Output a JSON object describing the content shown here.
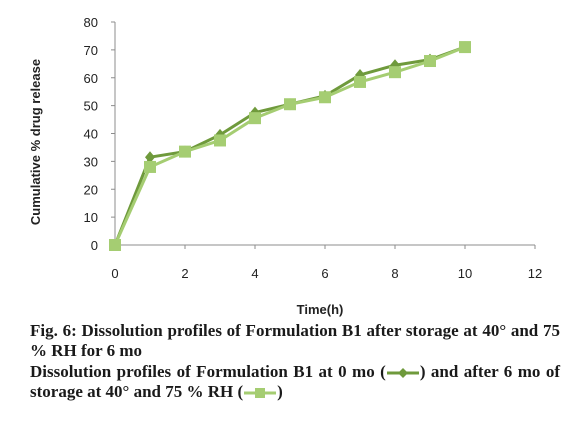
{
  "chart_data": {
    "type": "line",
    "xlabel": "Time(h)",
    "ylabel": "Cumulative % drug release",
    "xlim": [
      0,
      12
    ],
    "ylim": [
      0,
      80
    ],
    "xticks": [
      0,
      2,
      4,
      6,
      8,
      10,
      12
    ],
    "yticks": [
      0,
      10,
      20,
      30,
      40,
      50,
      60,
      70,
      80
    ],
    "grid": false,
    "legend": "none",
    "x": [
      0,
      1,
      2,
      3,
      4,
      5,
      6,
      7,
      8,
      9,
      10
    ],
    "series": [
      {
        "key": "0 mo",
        "marker": "diamond",
        "color": "#6f9a3c",
        "values": [
          0,
          31.5,
          33.5,
          39.5,
          47.5,
          50.5,
          53.5,
          61,
          64.5,
          66.5,
          71
        ]
      },
      {
        "key": "6 mo",
        "marker": "square",
        "color": "#a5cd72",
        "values": [
          0,
          28,
          33.5,
          37.5,
          45.5,
          50.5,
          53,
          58.5,
          62,
          66,
          71
        ]
      }
    ]
  },
  "caption": {
    "title": "Fig. 6: Dissolution profiles of Formulation B1 after storage at 40° and 75 % RH for 6 mo",
    "desc_part1": "Dissolution profiles of Formulation B1 at 0 mo (",
    "desc_part2": ") and after 6 mo of storage at 40° and 75 % RH (",
    "desc_part3": ")"
  }
}
